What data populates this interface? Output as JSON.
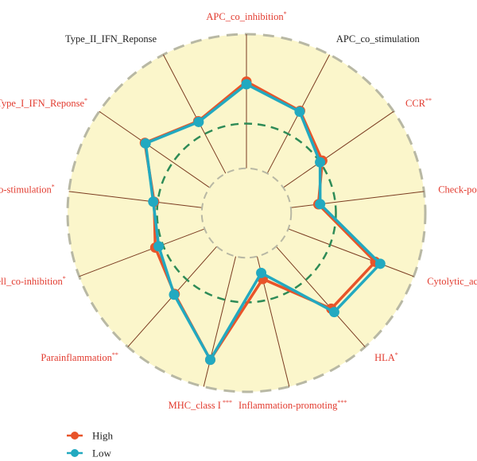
{
  "chart_data": {
    "type": "radar",
    "title": "",
    "categories": [
      {
        "name": "APC_co_inhibition",
        "sig": "*",
        "significant": true
      },
      {
        "name": "APC_co_stimulation",
        "sig": "",
        "significant": false
      },
      {
        "name": "CCR",
        "sig": "**",
        "significant": true
      },
      {
        "name": "Check-point",
        "sig": "*",
        "significant": true
      },
      {
        "name": "Cytolytic_activity",
        "sig": "*",
        "significant": true
      },
      {
        "name": "HLA",
        "sig": "*",
        "significant": true
      },
      {
        "name": "Inflammation-promoting",
        "sig": "***",
        "significant": true
      },
      {
        "name": "MHC_class I",
        "sig": " ***",
        "significant": true
      },
      {
        "name": "Parainflammation",
        "sig": "**",
        "significant": true
      },
      {
        "name": "T_cell_co-inhibition",
        "sig": "*",
        "significant": true
      },
      {
        "name": "T_cell_co-stimulation",
        "sig": "*",
        "significant": true
      },
      {
        "name": "Type_I_IFN_Reponse",
        "sig": "*",
        "significant": true
      },
      {
        "name": "Type_II_IFN_Reponse",
        "sig": "",
        "significant": false
      }
    ],
    "series": [
      {
        "name": "High",
        "color": "#e8542a",
        "values": [
          0.735,
          0.645,
          0.515,
          0.405,
          0.77,
          0.715,
          0.38,
          0.845,
          0.605,
          0.545,
          0.52,
          0.69,
          0.58
        ]
      },
      {
        "name": "Low",
        "color": "#22a9c0",
        "values": [
          0.72,
          0.64,
          0.5,
          0.415,
          0.8,
          0.74,
          0.345,
          0.845,
          0.61,
          0.525,
          0.525,
          0.685,
          0.575
        ]
      }
    ],
    "rlim": [
      0,
      1
    ],
    "inner_hole": 0.25,
    "reference_ring": 0.5,
    "grid": true,
    "legend_position": "bottom-left",
    "colors": {
      "background": "#fbf6cb",
      "spoke": "#7a3b20",
      "outer_border": "#b8b8a4",
      "reference_ring": "#2e8b57",
      "significant_label": "#e23b2f",
      "plain_label": "#222222"
    }
  }
}
